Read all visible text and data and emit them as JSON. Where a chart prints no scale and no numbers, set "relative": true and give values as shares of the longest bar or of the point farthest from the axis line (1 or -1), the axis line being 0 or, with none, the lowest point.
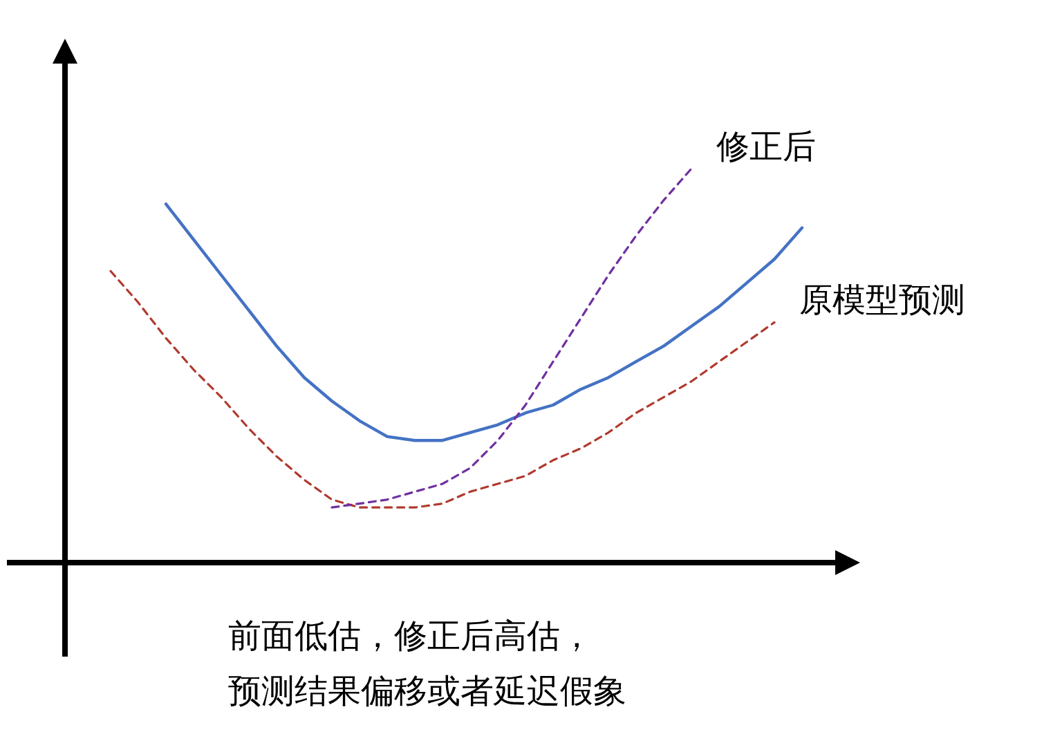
{
  "chart_data": {
    "type": "line",
    "relative": true,
    "marker": "none",
    "categories": [
      null,
      null,
      null,
      null,
      null,
      null,
      null,
      null,
      null,
      null,
      null,
      null,
      null,
      null,
      null,
      null,
      null,
      null,
      null,
      null,
      null,
      null,
      null,
      null,
      null,
      null
    ],
    "series": [
      {
        "color": "#4472c4",
        "line_style": "solid",
        "values": [
          null,
          null,
          0.91,
          0.82,
          0.73,
          0.64,
          0.55,
          0.47,
          0.41,
          0.36,
          0.32,
          0.31,
          0.31,
          0.33,
          0.35,
          0.38,
          0.4,
          0.44,
          0.47,
          0.51,
          0.55,
          0.6,
          0.65,
          0.71,
          0.77,
          0.85
        ]
      },
      {
        "name": "原模型预测",
        "color": "#b03a2e",
        "line_style": "dashed",
        "values": [
          0.74,
          0.66,
          0.57,
          0.49,
          0.42,
          0.34,
          0.27,
          0.21,
          0.16,
          0.14,
          0.14,
          0.14,
          0.15,
          0.18,
          0.2,
          0.22,
          0.26,
          0.29,
          0.33,
          0.38,
          0.42,
          0.46,
          0.51,
          0.56,
          0.61,
          null
        ]
      },
      {
        "name": "修正后",
        "color": "#7030a0",
        "line_style": "dashed",
        "values": [
          null,
          null,
          null,
          null,
          null,
          null,
          null,
          null,
          0.14,
          0.15,
          0.16,
          0.18,
          0.2,
          0.24,
          0.31,
          0.4,
          0.51,
          0.62,
          0.73,
          0.83,
          0.92,
          1.0,
          null,
          null,
          null,
          null
        ]
      }
    ],
    "annotations": [
      "前面低估，修正后高估，",
      "预测结果偏移或者延迟假象"
    ]
  }
}
